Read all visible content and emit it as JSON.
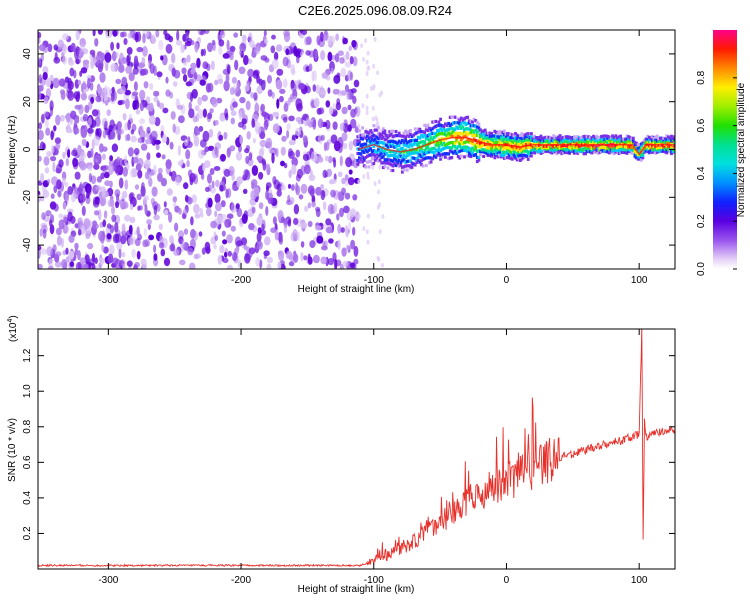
{
  "title": "C2E6.2025.096.08.09.R24",
  "chart_data": [
    {
      "type": "heatmap",
      "xlabel": "Height of straight line (km)",
      "ylabel": "Frequency (Hz)",
      "xlim": [
        -353,
        127
      ],
      "ylim": [
        -50,
        50
      ],
      "xticks": [
        -300,
        -200,
        -100,
        0,
        100
      ],
      "yticks": [
        -40,
        -20,
        0,
        20,
        40
      ],
      "colorbar": {
        "label": "Normalized spectral amplitude",
        "range": [
          0,
          1
        ],
        "ticks": [
          0.0,
          0.2,
          0.4,
          0.6,
          0.8
        ],
        "colormap": "white-violet-blue-cyan-green-yellow-red-magenta"
      },
      "noise_region_x": [
        -353,
        -112
      ],
      "ridge": {
        "x": [
          -112,
          -100,
          -90,
          -80,
          -70,
          -60,
          -50,
          -40,
          -30,
          -20,
          -10,
          0,
          10,
          20,
          40,
          60,
          80,
          95,
          100,
          105,
          127
        ],
        "freq": [
          0,
          2,
          0,
          -1,
          0,
          2,
          4,
          5,
          5,
          3,
          2,
          2,
          1,
          2,
          2,
          2,
          2,
          2,
          -2,
          2,
          2
        ],
        "amplitude": [
          0.3,
          0.35,
          0.4,
          0.45,
          0.5,
          0.55,
          0.65,
          0.75,
          0.8,
          0.85,
          0.8,
          0.85,
          0.85,
          0.9,
          0.9,
          0.92,
          0.95,
          0.9,
          0.7,
          0.9,
          0.95
        ]
      }
    },
    {
      "type": "line",
      "xlabel": "Height of straight line (km)",
      "ylabel": "SNR (10 * v/v)",
      "y_multiplier_label": "(x10",
      "y_multiplier_exp": "4",
      "xlim": [
        -353,
        127
      ],
      "ylim": [
        0,
        1.35
      ],
      "xticks": [
        -300,
        -200,
        -100,
        0,
        100
      ],
      "yticks": [
        0.2,
        0.4,
        0.6,
        0.8,
        1.0,
        1.2
      ],
      "line_color": "#e8302a",
      "series": [
        {
          "x": [
            -353,
            -300,
            -250,
            -200,
            -150,
            -110,
            -100,
            -90,
            -80,
            -70,
            -60,
            -50,
            -40,
            -30,
            -20,
            -10,
            0,
            10,
            20,
            30,
            40,
            50,
            60,
            70,
            80,
            90,
            95,
            100,
            102,
            103,
            104,
            105,
            110,
            120,
            127
          ],
          "values": [
            0.02,
            0.02,
            0.02,
            0.02,
            0.02,
            0.02,
            0.05,
            0.08,
            0.12,
            0.15,
            0.22,
            0.26,
            0.32,
            0.38,
            0.42,
            0.45,
            0.48,
            0.52,
            0.56,
            0.6,
            0.63,
            0.65,
            0.67,
            0.69,
            0.71,
            0.73,
            0.74,
            0.76,
            1.35,
            0.15,
            0.85,
            0.74,
            0.76,
            0.78,
            0.78
          ]
        }
      ]
    }
  ]
}
